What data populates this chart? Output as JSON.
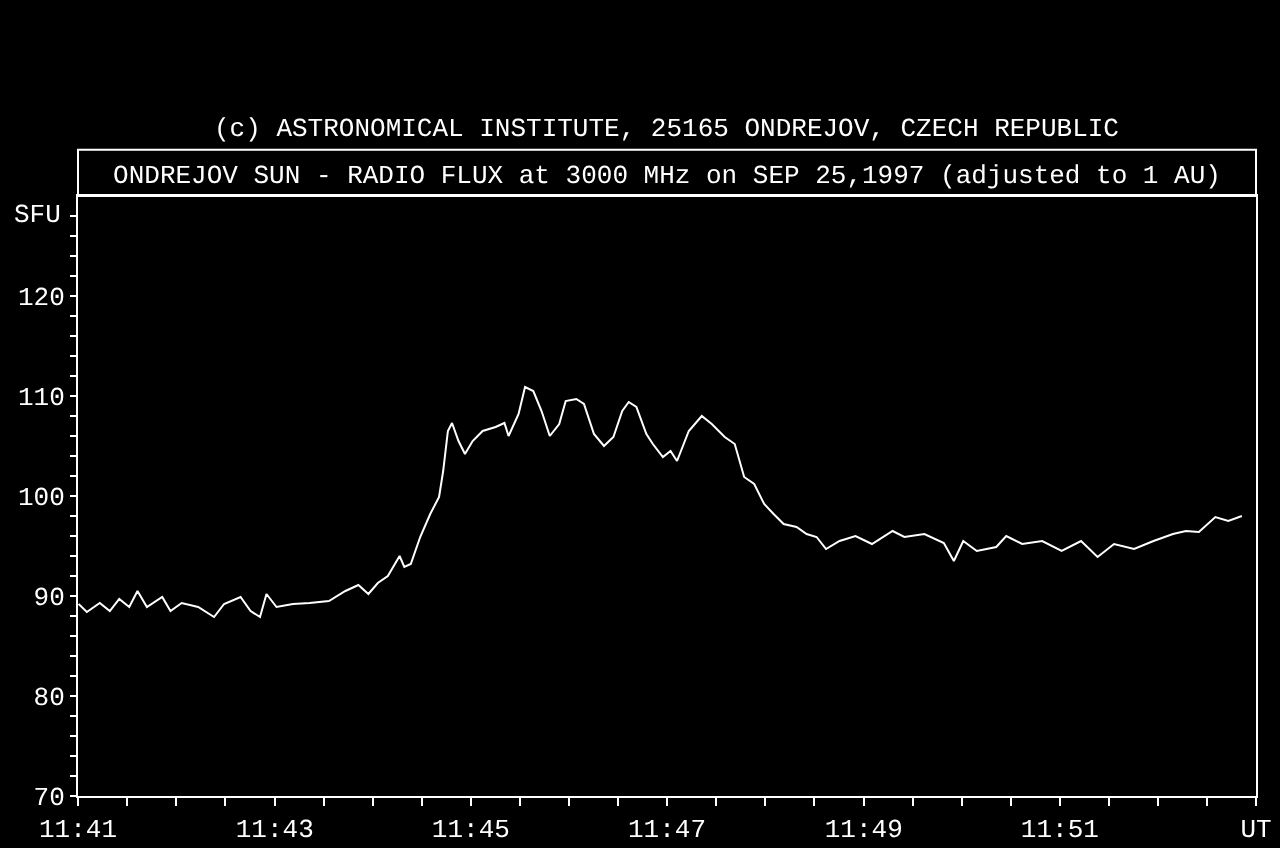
{
  "chart_data": {
    "type": "line",
    "title": "ONDREJOV SUN - RADIO FLUX at 3000 MHz on SEP 25,1997 (adjusted to 1 AU)",
    "ylabel": "SFU",
    "annotations": [
      "(c) ASTRONOMICAL INSTITUTE, 25165 ONDREJOV, CZECH REPUBLIC"
    ],
    "x": [
      11.6834,
      11.6848,
      11.687,
      11.6887,
      11.6903,
      11.692,
      11.6934,
      11.695,
      11.6976,
      11.699,
      11.7009,
      11.7037,
      11.7064,
      11.7081,
      11.7109,
      11.7126,
      11.7142,
      11.7153,
      11.717,
      11.7198,
      11.7226,
      11.7259,
      11.7287,
      11.7309,
      11.7326,
      11.7342,
      11.7359,
      11.7379,
      11.7387,
      11.7398,
      11.7414,
      11.7431,
      11.7446,
      11.7453,
      11.7461,
      11.7468,
      11.7479,
      11.749,
      11.7503,
      11.752,
      11.7542,
      11.7557,
      11.7564,
      11.7581,
      11.7592,
      11.7606,
      11.762,
      11.7634,
      11.765,
      11.7661,
      11.7679,
      11.7692,
      11.7709,
      11.7726,
      11.7742,
      11.7757,
      11.7768,
      11.7781,
      11.7798,
      11.7809,
      11.7826,
      11.7839,
      11.785,
      11.787,
      11.7892,
      11.7909,
      11.7931,
      11.7948,
      11.7964,
      11.7981,
      11.7998,
      11.8014,
      11.8031,
      11.8053,
      11.807,
      11.8087,
      11.8103,
      11.8126,
      11.8153,
      11.8181,
      11.8216,
      11.8236,
      11.827,
      11.8303,
      11.832,
      11.8336,
      11.8359,
      11.8392,
      11.8409,
      11.8436,
      11.847,
      11.8503,
      11.8536,
      11.8564,
      11.8592,
      11.8626,
      11.8659,
      11.8692,
      11.8714,
      11.8736,
      11.8764,
      11.8786,
      11.8809
    ],
    "series": [
      {
        "color": "#ffffff",
        "values": [
          89.2,
          88.4,
          89.3,
          88.5,
          89.7,
          88.9,
          90.5,
          88.9,
          89.9,
          88.5,
          89.3,
          88.9,
          87.9,
          89.2,
          89.9,
          88.5,
          87.9,
          90.2,
          88.9,
          89.2,
          89.3,
          89.5,
          90.5,
          91.1,
          90.2,
          91.3,
          92,
          94,
          92.9,
          93.2,
          95.9,
          98.2,
          99.9,
          102.5,
          106.5,
          107.3,
          105.5,
          104.2,
          105.5,
          106.5,
          106.9,
          107.3,
          106,
          108.2,
          110.9,
          110.5,
          108.5,
          106,
          107.2,
          109.5,
          109.7,
          109.2,
          106.2,
          105,
          105.9,
          108.5,
          109.4,
          108.9,
          106.2,
          105.2,
          103.9,
          104.5,
          103.5,
          106.5,
          108,
          107.2,
          105.9,
          105.2,
          101.9,
          101.2,
          99.2,
          98.2,
          97.2,
          96.9,
          96.2,
          95.9,
          94.7,
          95.5,
          96,
          95.2,
          96.5,
          95.9,
          96.2,
          95.3,
          93.5,
          95.5,
          94.5,
          94.9,
          96,
          95.2,
          95.5,
          94.5,
          95.5,
          93.9,
          95.2,
          94.7,
          95.5,
          96.2,
          96.5,
          96.4,
          97.9,
          97.5,
          98
        ]
      }
    ],
    "xlim": [
      11.6833,
      11.8833
    ],
    "xticks": [
      {
        "value": 11.6833,
        "label": "11:41"
      },
      {
        "value": 11.6917,
        "label": null
      },
      {
        "value": 11.7,
        "label": null
      },
      {
        "value": 11.7083,
        "label": null
      },
      {
        "value": 11.7167,
        "label": "11:43"
      },
      {
        "value": 11.725,
        "label": null
      },
      {
        "value": 11.7333,
        "label": null
      },
      {
        "value": 11.7417,
        "label": null
      },
      {
        "value": 11.75,
        "label": "11:45"
      },
      {
        "value": 11.7583,
        "label": null
      },
      {
        "value": 11.7667,
        "label": null
      },
      {
        "value": 11.775,
        "label": null
      },
      {
        "value": 11.7833,
        "label": "11:47"
      },
      {
        "value": 11.7917,
        "label": null
      },
      {
        "value": 11.8,
        "label": null
      },
      {
        "value": 11.8083,
        "label": null
      },
      {
        "value": 11.8167,
        "label": "11:49"
      },
      {
        "value": 11.825,
        "label": null
      },
      {
        "value": 11.8333,
        "label": null
      },
      {
        "value": 11.8417,
        "label": null
      },
      {
        "value": 11.85,
        "label": "11:51"
      },
      {
        "value": 11.8583,
        "label": null
      },
      {
        "value": 11.8667,
        "label": null
      },
      {
        "value": 11.875,
        "label": null
      },
      {
        "value": 11.8833,
        "label": "UT"
      }
    ],
    "ylim": [
      70,
      130
    ],
    "yticks": [
      70,
      {
        "value": 72,
        "label": null
      },
      {
        "value": 74,
        "label": null
      },
      {
        "value": 76,
        "label": null
      },
      {
        "value": 78,
        "label": null
      },
      80,
      {
        "value": 82,
        "label": null
      },
      {
        "value": 84,
        "label": null
      },
      {
        "value": 86,
        "label": null
      },
      {
        "value": 88,
        "label": null
      },
      90,
      {
        "value": 92,
        "label": null
      },
      {
        "value": 94,
        "label": null
      },
      {
        "value": 96,
        "label": null
      },
      {
        "value": 98,
        "label": null
      },
      100,
      {
        "value": 102,
        "label": null
      },
      {
        "value": 104,
        "label": null
      },
      {
        "value": 106,
        "label": null
      },
      {
        "value": 108,
        "label": null
      },
      110,
      {
        "value": 112,
        "label": null
      },
      {
        "value": 114,
        "label": null
      },
      {
        "value": 116,
        "label": null
      },
      {
        "value": 118,
        "label": null
      },
      120,
      {
        "value": 122,
        "label": null
      },
      {
        "value": 124,
        "label": null
      },
      {
        "value": 126,
        "label": null
      },
      {
        "value": 128,
        "label": null
      }
    ],
    "grid": false,
    "marker": "none",
    "line_style": "solid"
  }
}
